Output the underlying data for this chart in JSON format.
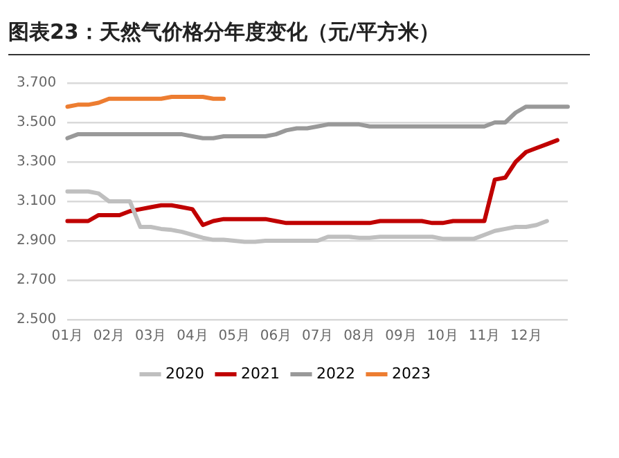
{
  "chart_data": {
    "type": "line",
    "title": "图表23：天然气价格分年度变化（元/平方米）",
    "categories": [
      "01月",
      null,
      null,
      null,
      "02月",
      null,
      null,
      null,
      "03月",
      null,
      null,
      null,
      "04月",
      null,
      null,
      null,
      "05月",
      null,
      null,
      null,
      "06月",
      null,
      null,
      null,
      "07月",
      null,
      null,
      null,
      "08月",
      null,
      null,
      null,
      "09月",
      null,
      null,
      null,
      "10月",
      null,
      null,
      null,
      "11月",
      null,
      null,
      null,
      "12月",
      null,
      null,
      null,
      null
    ],
    "series": [
      {
        "name": "2020",
        "color": "#bfbfbf",
        "values": [
          3.15,
          3.15,
          3.15,
          3.14,
          3.1,
          3.1,
          3.1,
          2.97,
          2.97,
          2.96,
          2.955,
          2.945,
          2.93,
          2.915,
          2.905,
          2.905,
          2.9,
          2.895,
          2.895,
          2.9,
          2.9,
          2.9,
          2.9,
          2.9,
          2.9,
          2.92,
          2.92,
          2.92,
          2.915,
          2.915,
          2.92,
          2.92,
          2.92,
          2.92,
          2.92,
          2.92,
          2.91,
          2.91,
          2.91,
          2.91,
          2.93,
          2.95,
          2.96,
          2.97,
          2.97,
          2.98,
          3.0,
          null,
          null
        ]
      },
      {
        "name": "2021",
        "color": "#c00000",
        "values": [
          3.0,
          3.0,
          3.0,
          3.03,
          3.03,
          3.03,
          3.05,
          3.06,
          3.07,
          3.08,
          3.08,
          3.07,
          3.06,
          2.98,
          3.0,
          3.01,
          3.01,
          3.01,
          3.01,
          3.01,
          3.0,
          2.99,
          2.99,
          2.99,
          2.99,
          2.99,
          2.99,
          2.99,
          2.99,
          2.99,
          3.0,
          3.0,
          3.0,
          3.0,
          3.0,
          2.99,
          2.99,
          3.0,
          3.0,
          3.0,
          3.0,
          3.21,
          3.22,
          3.3,
          3.35,
          3.37,
          3.39,
          3.41,
          null
        ]
      },
      {
        "name": "2022",
        "color": "#999999",
        "values": [
          3.42,
          3.44,
          3.44,
          3.44,
          3.44,
          3.44,
          3.44,
          3.44,
          3.44,
          3.44,
          3.44,
          3.44,
          3.43,
          3.42,
          3.42,
          3.43,
          3.43,
          3.43,
          3.43,
          3.43,
          3.44,
          3.46,
          3.47,
          3.47,
          3.48,
          3.49,
          3.49,
          3.49,
          3.49,
          3.48,
          3.48,
          3.48,
          3.48,
          3.48,
          3.48,
          3.48,
          3.48,
          3.48,
          3.48,
          3.48,
          3.48,
          3.5,
          3.5,
          3.55,
          3.58,
          3.58,
          3.58,
          3.58,
          3.58
        ]
      },
      {
        "name": "2023",
        "color": "#ed7d31",
        "values": [
          3.58,
          3.59,
          3.59,
          3.6,
          3.62,
          3.62,
          3.62,
          3.62,
          3.62,
          3.62,
          3.63,
          3.63,
          3.63,
          3.63,
          3.62,
          3.62,
          null,
          null,
          null,
          null,
          null,
          null,
          null,
          null,
          null,
          null,
          null,
          null,
          null,
          null,
          null,
          null,
          null,
          null,
          null,
          null,
          null,
          null,
          null,
          null,
          null,
          null,
          null,
          null,
          null,
          null,
          null,
          null,
          null
        ]
      }
    ],
    "ylim": [
      2.5,
      3.7
    ],
    "yticks": [
      {
        "value": 2.5,
        "label": "2.500"
      },
      {
        "value": 2.7,
        "label": "2.700"
      },
      {
        "value": 2.9,
        "label": "2.900"
      },
      {
        "value": 3.1,
        "label": "3.100"
      },
      {
        "value": 3.3,
        "label": "3.300"
      },
      {
        "value": 3.5,
        "label": "3.500"
      },
      {
        "value": 3.7,
        "label": "3.700"
      }
    ],
    "grid": "y",
    "legend": "bottom",
    "marker": "none",
    "line_style": "solid"
  }
}
